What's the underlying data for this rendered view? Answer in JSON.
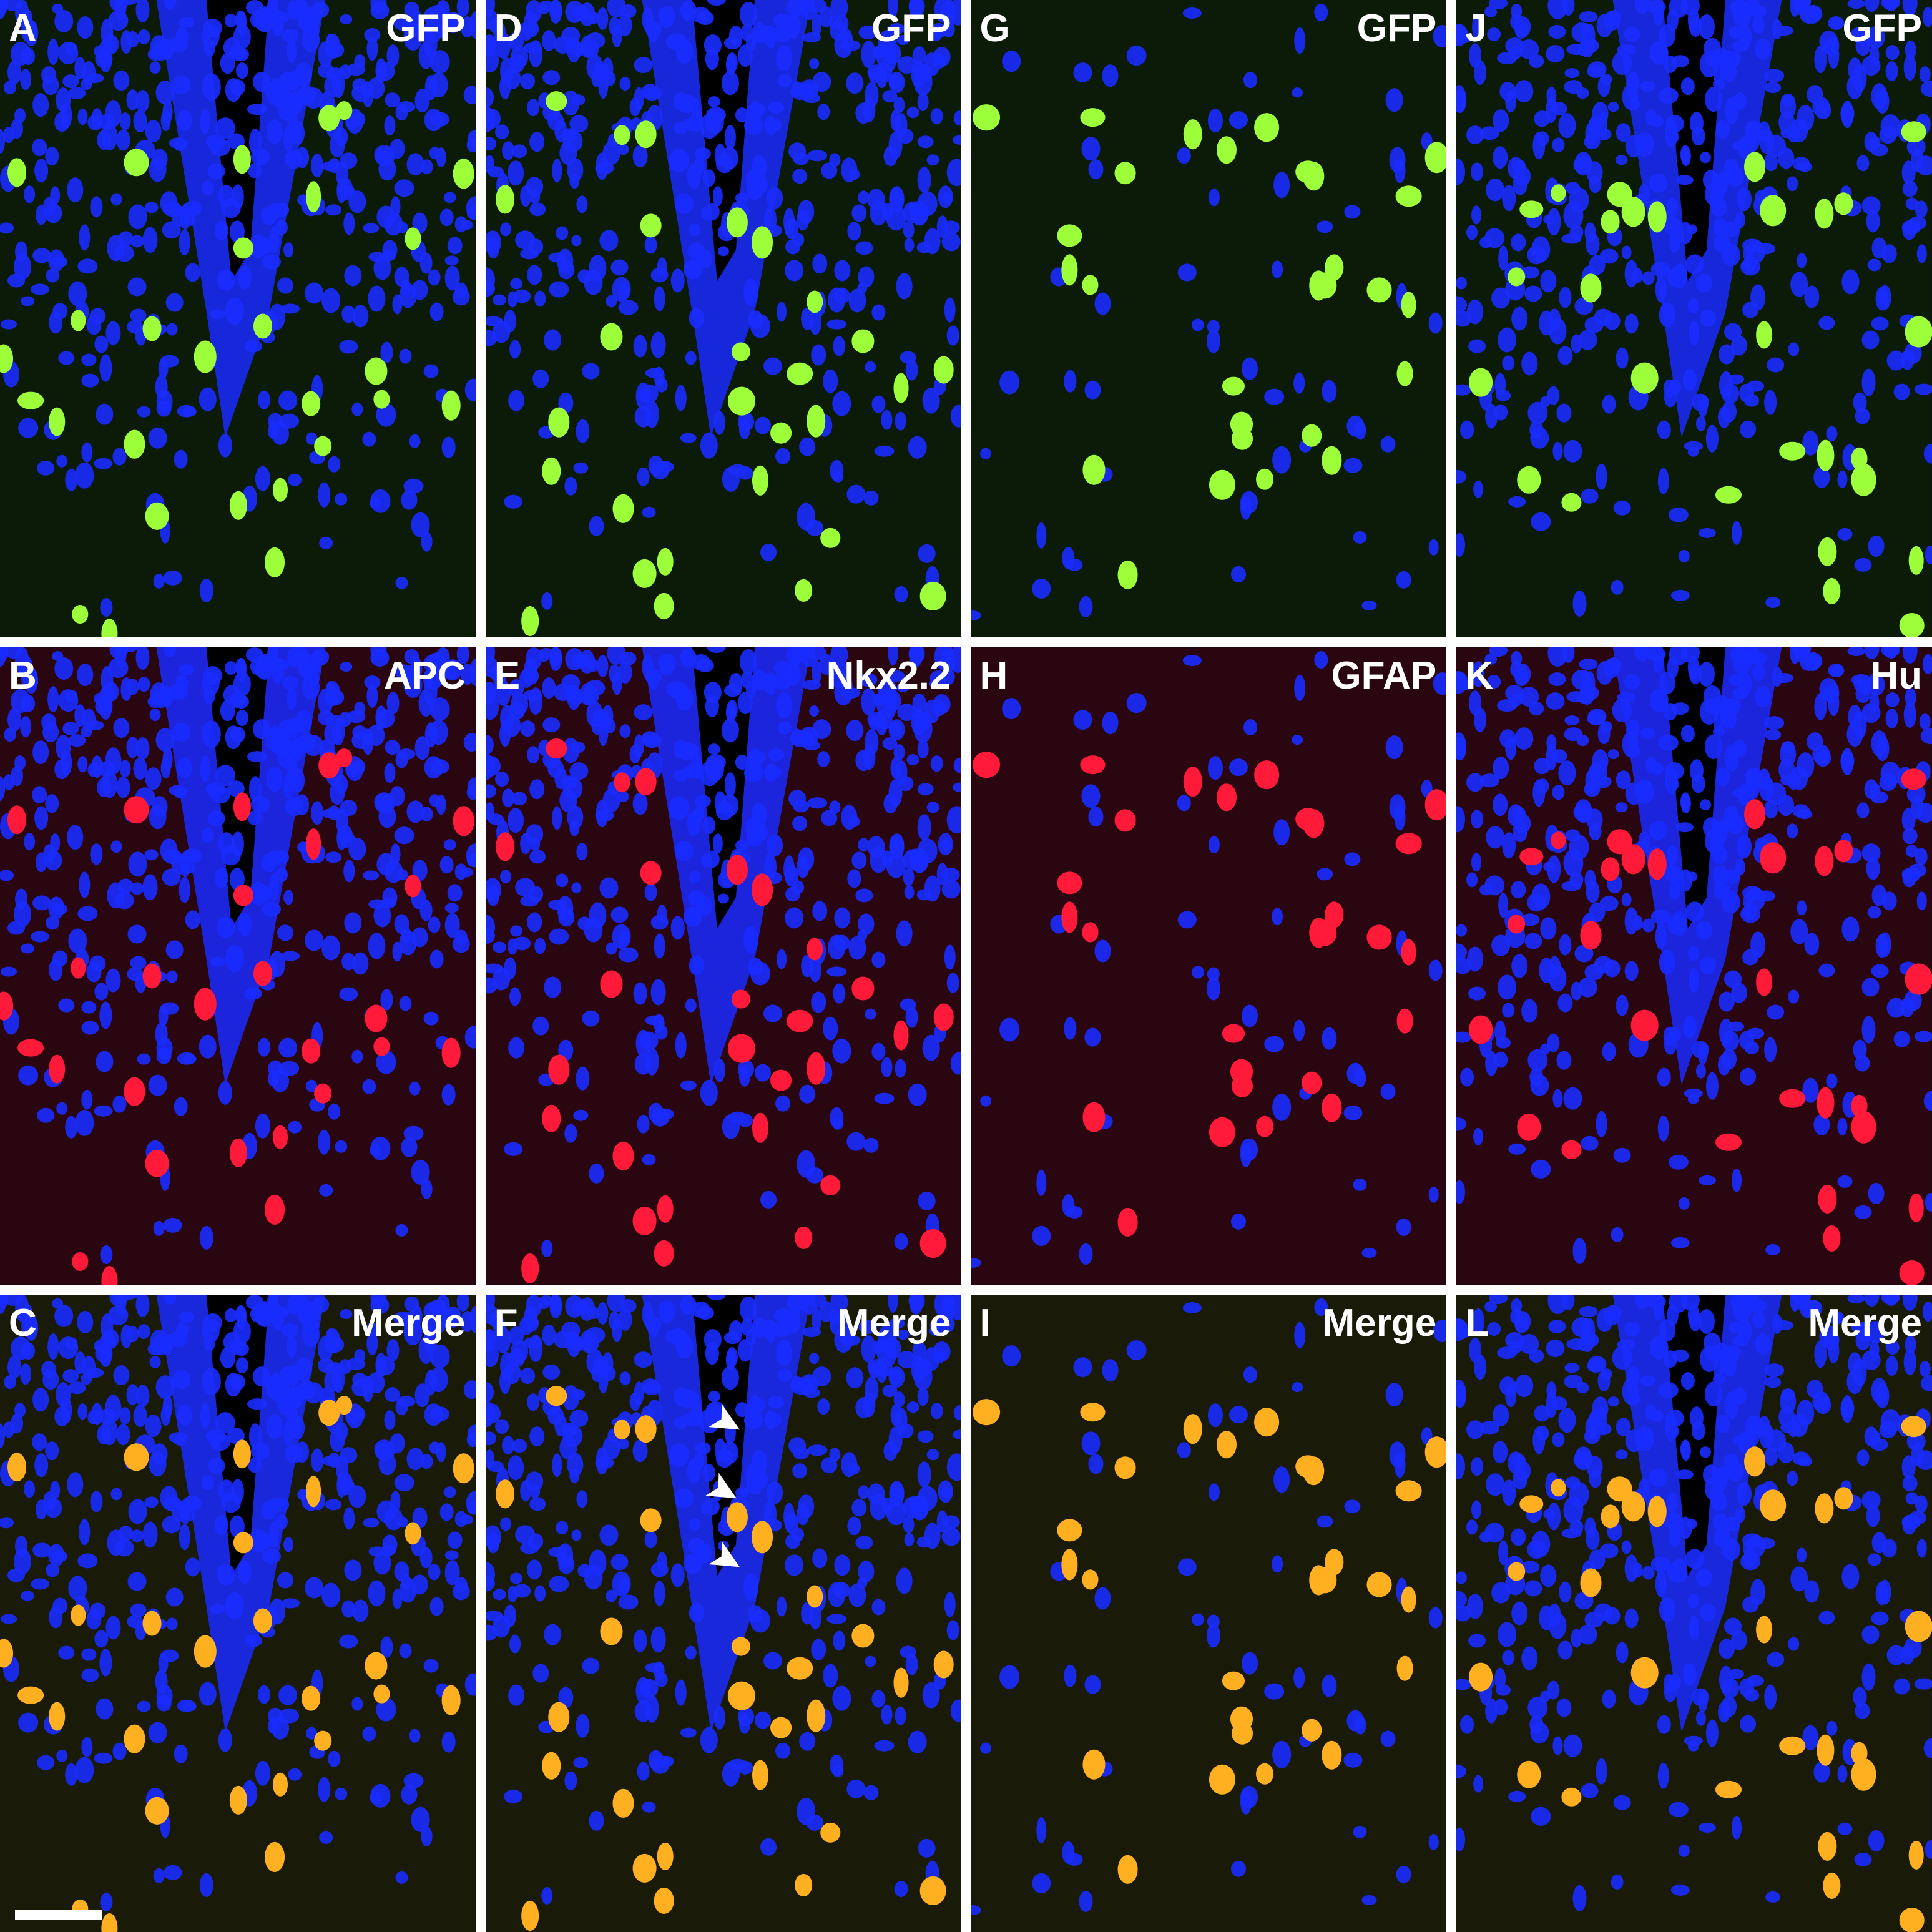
{
  "figure": {
    "panels": [
      {
        "letter": "A",
        "label": "GFP",
        "type": "green",
        "ventricle": true
      },
      {
        "letter": "D",
        "label": "GFP",
        "type": "green",
        "ventricle": true
      },
      {
        "letter": "G",
        "label": "GFP",
        "type": "green",
        "ventricle": false
      },
      {
        "letter": "J",
        "label": "GFP",
        "type": "green",
        "ventricle": true
      },
      {
        "letter": "B",
        "label": "APC",
        "type": "red",
        "ventricle": true
      },
      {
        "letter": "E",
        "label": "Nkx2.2",
        "type": "red",
        "ventricle": true
      },
      {
        "letter": "H",
        "label": "GFAP",
        "type": "red",
        "ventricle": false
      },
      {
        "letter": "K",
        "label": "Hu",
        "type": "red",
        "ventricle": true
      },
      {
        "letter": "C",
        "label": "Merge",
        "type": "merge",
        "ventricle": true
      },
      {
        "letter": "F",
        "label": "Merge",
        "type": "merge",
        "ventricle": true
      },
      {
        "letter": "I",
        "label": "Merge",
        "type": "merge",
        "ventricle": false
      },
      {
        "letter": "L",
        "label": "Merge",
        "type": "merge",
        "ventricle": true
      }
    ],
    "colors": {
      "nuclei": "#1a2cff",
      "green": "#9cff3a",
      "red": "#ff1a3a",
      "merge": "#ffb020",
      "background": "#06081a"
    },
    "scale_bar_panel": "C",
    "arrow_panel": "F",
    "arrow_icon": "arrow-pointer"
  }
}
